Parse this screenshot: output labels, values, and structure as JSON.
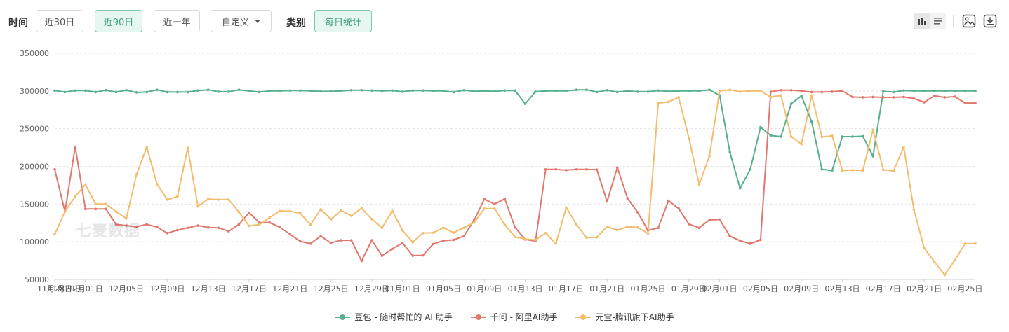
{
  "filters": {
    "time_label": "时间",
    "time_options": [
      "近30日",
      "近90日",
      "近一年"
    ],
    "time_active": 1,
    "custom_label": "自定义",
    "category_label": "类别",
    "category_value": "每日统计"
  },
  "toolbar_icons": [
    "bar-chart-icon",
    "table-icon",
    "image-icon",
    "download-icon"
  ],
  "watermark": "七麦数据",
  "colors": {
    "doubao": "#56b08b",
    "qianwen": "#e2776e",
    "yuanbao": "#f3bd6d",
    "accent": "#3f9c7b"
  },
  "chart_data": {
    "type": "line",
    "title": "",
    "xlabel": "",
    "ylabel": "",
    "ylim": [
      50000,
      350000
    ],
    "yticks": [
      50000,
      100000,
      150000,
      200000,
      250000,
      300000,
      350000
    ],
    "ytick_labels": [
      "50000",
      "100000",
      "150000",
      "200000",
      "250000",
      "300000",
      "350000"
    ],
    "grid": true,
    "legend": "bottom",
    "x_start": "2024-11-28",
    "num_points": 91,
    "x_tick_labels": [
      {
        "label": "11月28日",
        "i": 0
      },
      {
        "label": "11月29日",
        "i": 1
      },
      {
        "label": "12月01日",
        "i": 3
      },
      {
        "label": "12月05日",
        "i": 7
      },
      {
        "label": "12月09日",
        "i": 11
      },
      {
        "label": "12月13日",
        "i": 15
      },
      {
        "label": "12月17日",
        "i": 19
      },
      {
        "label": "12月21日",
        "i": 23
      },
      {
        "label": "12月25日",
        "i": 27
      },
      {
        "label": "12月29日",
        "i": 31
      },
      {
        "label": "01月01日",
        "i": 34
      },
      {
        "label": "01月05日",
        "i": 38
      },
      {
        "label": "01月09日",
        "i": 42
      },
      {
        "label": "01月13日",
        "i": 46
      },
      {
        "label": "01月17日",
        "i": 50
      },
      {
        "label": "01月21日",
        "i": 54
      },
      {
        "label": "01月25日",
        "i": 58
      },
      {
        "label": "01月29日",
        "i": 62
      },
      {
        "label": "02月01日",
        "i": 65
      },
      {
        "label": "02月05日",
        "i": 69
      },
      {
        "label": "02月09日",
        "i": 73
      },
      {
        "label": "02月13日",
        "i": 77
      },
      {
        "label": "02月17日",
        "i": 81
      },
      {
        "label": "02月21日",
        "i": 85
      },
      {
        "label": "02月25日",
        "i": 89
      }
    ],
    "series": [
      {
        "name": "豆包 - 随时帮忙的 AI 助手",
        "color": "#56b08b",
        "values": [
          300500,
          298500,
          300500,
          300500,
          298500,
          301000,
          298500,
          301000,
          298000,
          298500,
          301500,
          298500,
          298500,
          298500,
          300500,
          301500,
          299000,
          299000,
          301500,
          300000,
          298500,
          300000,
          300000,
          300500,
          300500,
          300000,
          299500,
          299500,
          300000,
          301000,
          301000,
          300500,
          300000,
          300500,
          299000,
          300500,
          300500,
          300000,
          300000,
          298500,
          301000,
          299500,
          300000,
          299500,
          300500,
          300500,
          283000,
          299000,
          300000,
          300000,
          300000,
          301500,
          301500,
          298500,
          301000,
          298500,
          300000,
          299000,
          299000,
          300500,
          299500,
          300000,
          300000,
          300000,
          301500,
          294000,
          219000,
          171000,
          196000,
          252000,
          241000,
          239500,
          283000,
          293500,
          259000,
          196000,
          194500,
          239500,
          239500,
          240000,
          213500,
          299500,
          298500,
          300500,
          300000,
          300000,
          300000,
          300000,
          300000,
          300000,
          300000
        ]
      },
      {
        "name": "千问 - 阿里AI助手",
        "color": "#e2776e",
        "values": [
          196000,
          140000,
          226000,
          143500,
          143500,
          143500,
          123000,
          121500,
          120000,
          123000,
          119500,
          111500,
          115500,
          118500,
          121500,
          119000,
          118500,
          114000,
          123000,
          138500,
          125500,
          125500,
          119500,
          110000,
          100500,
          97500,
          107500,
          98500,
          102000,
          102000,
          74500,
          102000,
          81500,
          90500,
          98500,
          81500,
          82000,
          97000,
          101500,
          102500,
          107500,
          128500,
          156500,
          150000,
          157000,
          119000,
          103000,
          101000,
          196000,
          196000,
          195000,
          196000,
          196000,
          195500,
          153500,
          198500,
          157500,
          139000,
          115000,
          118500,
          154500,
          144000,
          123500,
          118500,
          129000,
          129500,
          107500,
          101500,
          97500,
          102500,
          299000,
          301000,
          301000,
          300000,
          298500,
          298500,
          299000,
          300000,
          292000,
          291500,
          292000,
          291500,
          291500,
          292000,
          290000,
          285000,
          293500,
          291500,
          292500,
          284000,
          284000
        ]
      },
      {
        "name": "元宝-腾讯旗下AI助手",
        "color": "#f3bd6d",
        "values": [
          110000,
          140000,
          160000,
          176000,
          150000,
          150000,
          140000,
          131000,
          189500,
          225500,
          176500,
          156000,
          160000,
          224500,
          147000,
          156500,
          156000,
          156000,
          139500,
          121000,
          123000,
          132000,
          141000,
          140500,
          138000,
          122500,
          143000,
          130000,
          141500,
          134500,
          144500,
          130000,
          118500,
          141000,
          115000,
          99500,
          111500,
          112000,
          118500,
          112000,
          118500,
          125500,
          144000,
          144000,
          122500,
          106500,
          103500,
          102500,
          111500,
          97500,
          145500,
          123000,
          105500,
          106000,
          120000,
          115500,
          120000,
          119000,
          111000,
          284000,
          285500,
          291500,
          237500,
          176000,
          213500,
          300000,
          301500,
          299000,
          300000,
          300000,
          292000,
          294000,
          239500,
          229500,
          294000,
          239000,
          240500,
          194500,
          195000,
          194500,
          248500,
          195500,
          194000,
          225500,
          142500,
          91500,
          73500,
          56000,
          75500,
          97500,
          97500
        ]
      }
    ]
  }
}
